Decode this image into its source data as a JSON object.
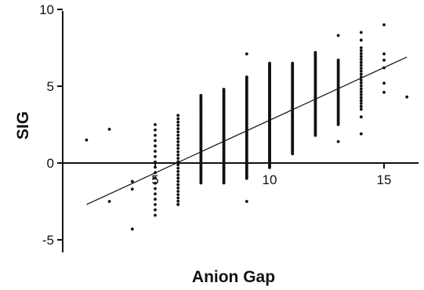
{
  "chart_data": {
    "type": "scatter",
    "title": "",
    "xlabel": "Anion Gap",
    "ylabel": "SIG",
    "xlim": [
      0,
      18
    ],
    "ylim": [
      -5.5,
      10
    ],
    "x_ticks": [
      5,
      10,
      15
    ],
    "y_ticks": [
      10,
      5,
      0,
      -5
    ],
    "x_tick_labels": [
      "5",
      "10",
      "15"
    ],
    "y_tick_labels": [
      "10",
      "5",
      "0",
      "-5"
    ],
    "grid": false,
    "legend": "none",
    "colors": {
      "points": "#111111",
      "axes": "#111111",
      "fit_line": "#111111"
    },
    "fit_line": {
      "x": [
        2,
        16
      ],
      "y": [
        -2.7,
        6.9
      ]
    },
    "scatter_columns": [
      {
        "x": 5,
        "y_min": -3.4,
        "y_max": 2.5,
        "n": 18
      },
      {
        "x": 6,
        "y_min": -2.7,
        "y_max": 3.1,
        "n": 28
      },
      {
        "x": 7,
        "y_min": -1.3,
        "y_max": 4.4,
        "n": 60
      },
      {
        "x": 8,
        "y_min": -1.3,
        "y_max": 4.8,
        "n": 90
      },
      {
        "x": 9,
        "y_min": -1.0,
        "y_max": 5.6,
        "n": 110
      },
      {
        "x": 10,
        "y_min": -0.3,
        "y_max": 6.5,
        "n": 120
      },
      {
        "x": 11,
        "y_min": 0.6,
        "y_max": 6.5,
        "n": 90
      },
      {
        "x": 12,
        "y_min": 1.8,
        "y_max": 7.2,
        "n": 70
      },
      {
        "x": 13,
        "y_min": 2.5,
        "y_max": 6.7,
        "n": 45
      },
      {
        "x": 14,
        "y_min": 3.5,
        "y_max": 7.5,
        "n": 22
      }
    ],
    "points": [
      {
        "x": 2,
        "y": 1.5
      },
      {
        "x": 3,
        "y": 2.2
      },
      {
        "x": 3,
        "y": -2.5
      },
      {
        "x": 4,
        "y": -1.2
      },
      {
        "x": 4,
        "y": -1.7
      },
      {
        "x": 4,
        "y": -4.3
      },
      {
        "x": 6,
        "y": -2.7
      },
      {
        "x": 9,
        "y": 7.1
      },
      {
        "x": 9,
        "y": -2.5
      },
      {
        "x": 13,
        "y": 8.3
      },
      {
        "x": 13,
        "y": 1.4
      },
      {
        "x": 14,
        "y": 8.5
      },
      {
        "x": 14,
        "y": 8.0
      },
      {
        "x": 14,
        "y": 3.0
      },
      {
        "x": 14,
        "y": 1.9
      },
      {
        "x": 15,
        "y": 9.0
      },
      {
        "x": 15,
        "y": 7.1
      },
      {
        "x": 15,
        "y": 6.7
      },
      {
        "x": 15,
        "y": 6.2
      },
      {
        "x": 15,
        "y": 5.2
      },
      {
        "x": 15,
        "y": 4.6
      },
      {
        "x": 16,
        "y": 4.3
      }
    ]
  }
}
